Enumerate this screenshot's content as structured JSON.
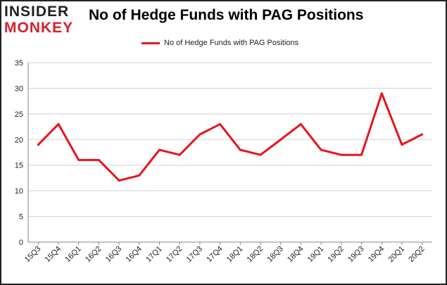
{
  "logo": {
    "line1": "INSIDER",
    "line2": "MONKEY"
  },
  "colors": {
    "series": "#e8141b",
    "grid": "#d0d0d0",
    "axis": "#888888",
    "brand_red": "#d2202f"
  },
  "chart_data": {
    "type": "line",
    "title": "No of Hedge Funds with PAG Positions",
    "xlabel": "",
    "ylabel": "",
    "ylim": [
      0,
      35
    ],
    "yticks": [
      0,
      5,
      10,
      15,
      20,
      25,
      30,
      35
    ],
    "grid": true,
    "legend_position": "top-center",
    "categories": [
      "15Q3",
      "15Q4",
      "16Q1",
      "16Q2",
      "16Q3",
      "16Q4",
      "17Q1",
      "17Q2",
      "17Q3",
      "17Q4",
      "18Q1",
      "18Q2",
      "18Q3",
      "18Q4",
      "19Q1",
      "19Q2",
      "19Q3",
      "19Q4",
      "20Q1",
      "20Q2"
    ],
    "series": [
      {
        "name": "No of Hedge Funds with PAG Positions",
        "values": [
          19,
          23,
          16,
          16,
          12,
          13,
          18,
          17,
          21,
          23,
          18,
          17,
          20,
          23,
          18,
          17,
          17,
          29,
          19,
          21
        ]
      }
    ]
  }
}
